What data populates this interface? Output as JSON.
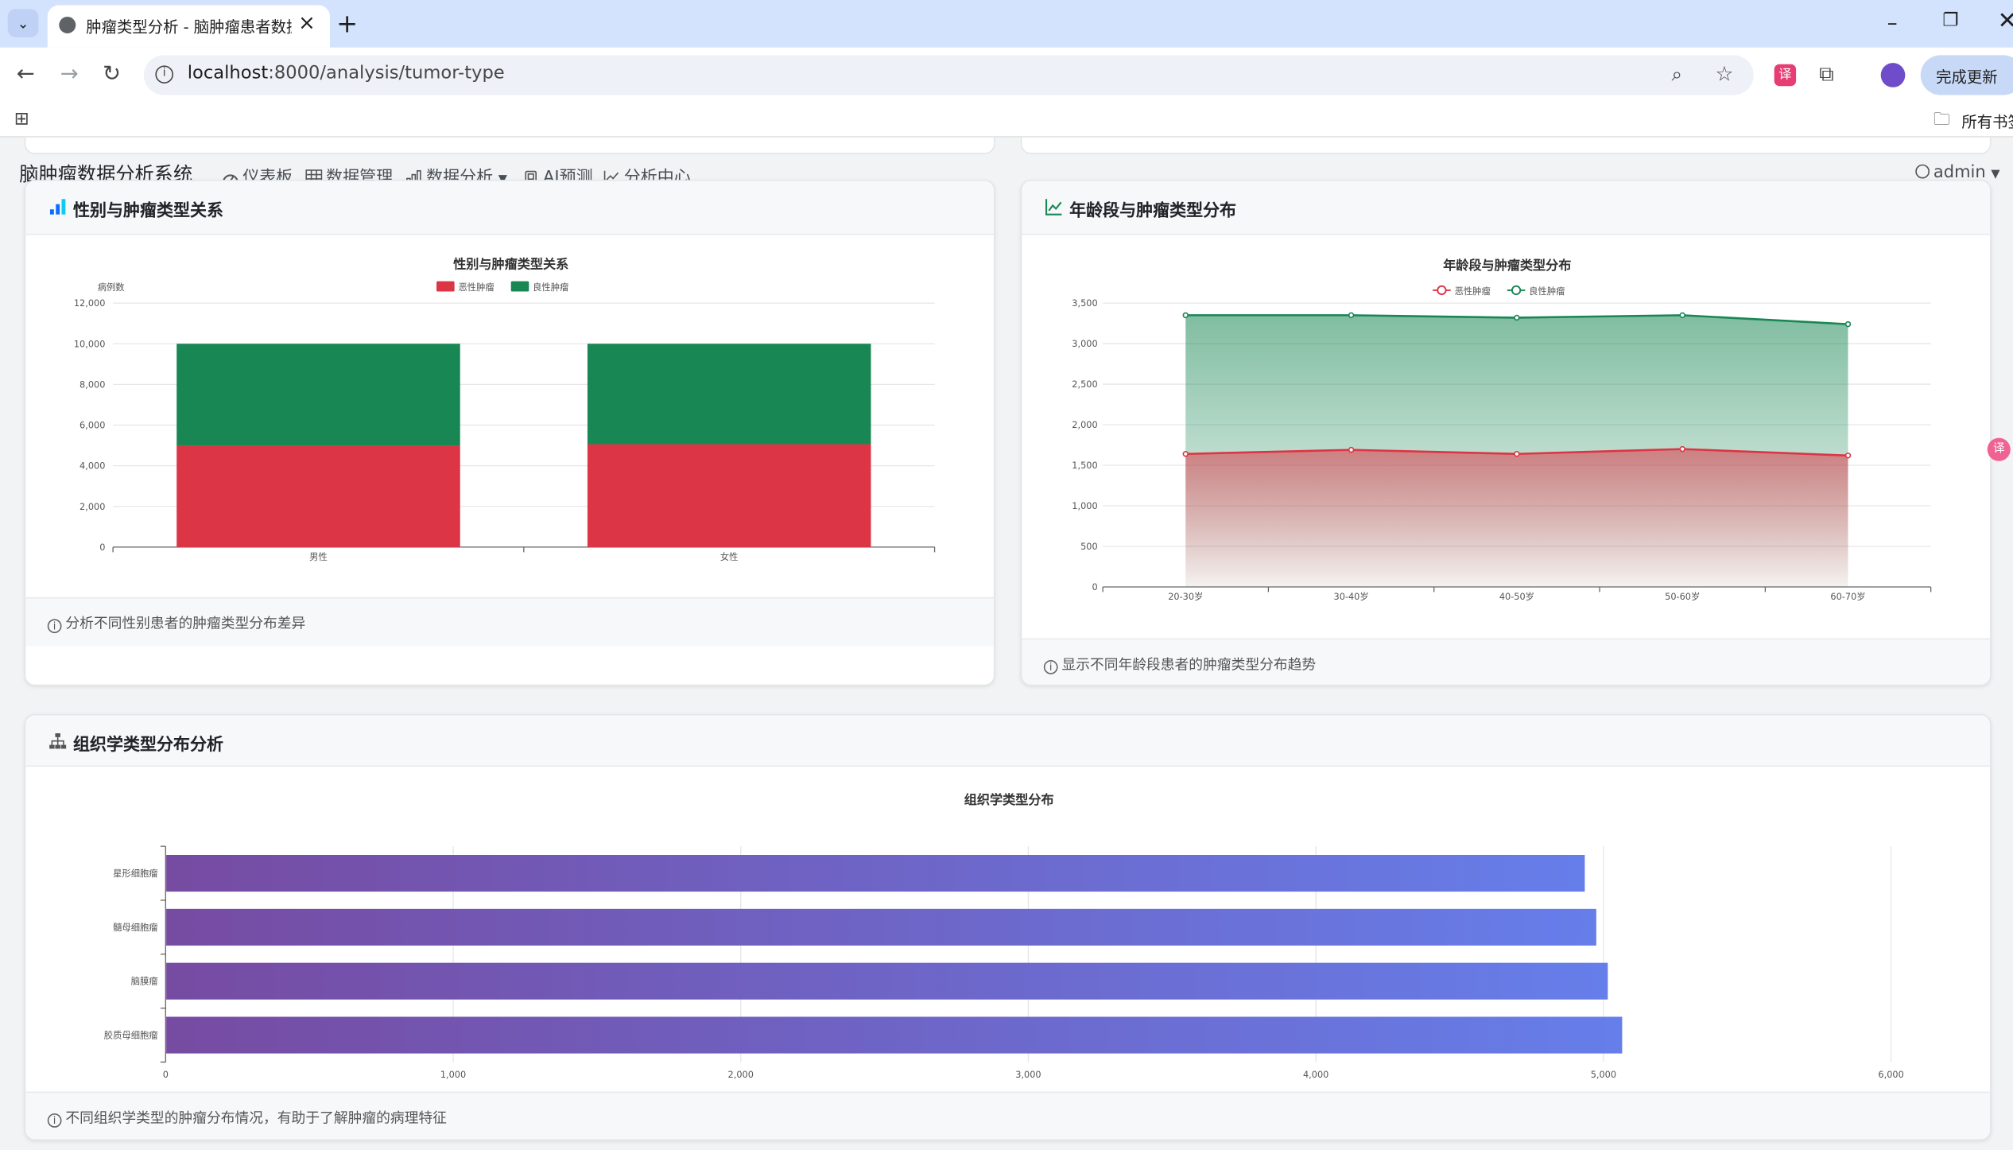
{
  "browser": {
    "tab_title": "肿瘤类型分析 - 脑肿瘤患者数据",
    "url_host": "localhost",
    "url_path": ":8000/analysis/tumor-type",
    "update_label": "完成更新",
    "bookmarks_label": "所有书签",
    "icons": [
      "tab-list-icon",
      "globe-icon",
      "close-icon",
      "plus-icon",
      "minimize-icon",
      "restore-icon",
      "back-icon",
      "forward-icon",
      "reload-icon",
      "info-icon",
      "zoom-icon",
      "star-icon",
      "translate-icon",
      "extensions-icon",
      "profile-icon",
      "apps-icon",
      "folder-icon"
    ]
  },
  "app": {
    "title": "脑肿瘤数据分析系统",
    "nav": [
      "仪表板",
      "数据管理",
      "数据分析",
      "AI预测",
      "分析中心"
    ],
    "user": "admin"
  },
  "cards": {
    "gender": {
      "header": "性别与肿瘤类型关系",
      "footer": "分析不同性别患者的肿瘤类型分布差异"
    },
    "age": {
      "header": "年龄段与肿瘤类型分布",
      "footer": "显示不同年龄段患者的肿瘤类型分布趋势"
    },
    "histology": {
      "header": "组织学类型分布分析",
      "footer": "不同组织学类型的肿瘤分布情况，有助于了解肿瘤的病理特征"
    }
  },
  "chart_data": [
    {
      "type": "bar",
      "stacked": true,
      "title": "性别与肿瘤类型关系",
      "ylabel": "病例数",
      "categories": [
        "男性",
        "女性"
      ],
      "series": [
        {
          "name": "恶性肿瘤",
          "values": [
            4980,
            5060
          ],
          "color": "#dc3545"
        },
        {
          "name": "良性肿瘤",
          "values": [
            5020,
            4940
          ],
          "color": "#198754"
        }
      ],
      "ylim": [
        0,
        12000
      ],
      "yticks": [
        "0",
        "2,000",
        "4,000",
        "6,000",
        "8,000",
        "10,000",
        "12,000"
      ],
      "legend": "top-center",
      "grid": true
    },
    {
      "type": "area",
      "title": "年龄段与肿瘤类型分布",
      "categories": [
        "20-30岁",
        "30-40岁",
        "40-50岁",
        "50-60岁",
        "60-70岁"
      ],
      "series": [
        {
          "name": "恶性肿瘤",
          "values": [
            1640,
            1690,
            1640,
            1700,
            1620
          ],
          "color": "#dc3545"
        },
        {
          "name": "良性肿瘤",
          "values": [
            3350,
            3350,
            3320,
            3350,
            3240
          ],
          "color": "#198754"
        }
      ],
      "ylim": [
        0,
        3500
      ],
      "yticks": [
        "0",
        "500",
        "1,000",
        "1,500",
        "2,000",
        "2,500",
        "3,000",
        "3,500"
      ],
      "legend": "top-center",
      "grid": true
    },
    {
      "type": "bar",
      "orientation": "horizontal",
      "title": "组织学类型分布",
      "categories": [
        "星形细胞瘤",
        "髓母细胞瘤",
        "脑膜瘤",
        "胶质母细胞瘤"
      ],
      "values": [
        4935,
        4975,
        5015,
        5065
      ],
      "xlim": [
        0,
        6000
      ],
      "xticks": [
        "0",
        "1,000",
        "2,000",
        "3,000",
        "4,000",
        "5,000",
        "6,000"
      ],
      "colors": [
        "#764ba2",
        "#667eea"
      ],
      "grid": true
    }
  ]
}
